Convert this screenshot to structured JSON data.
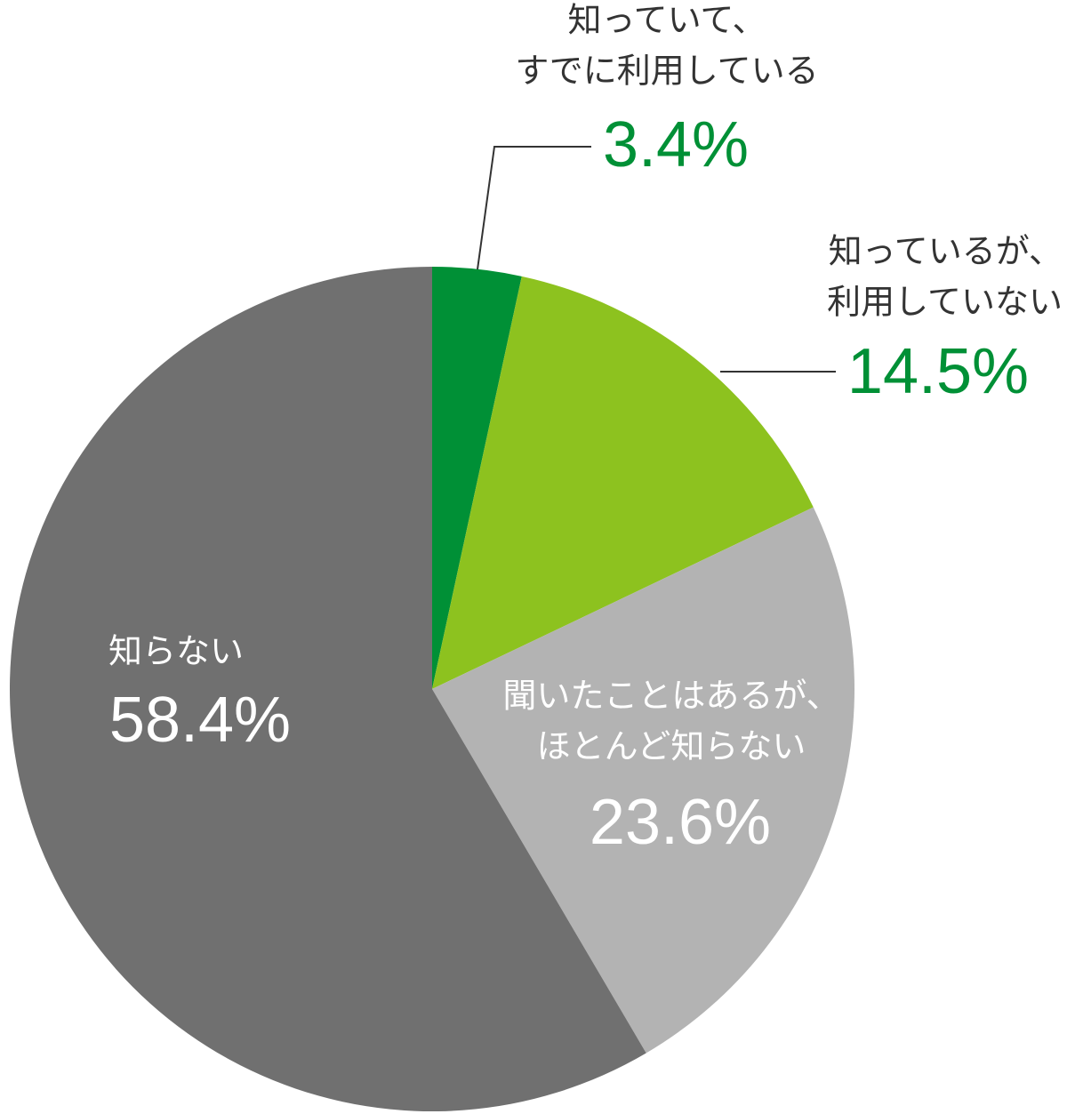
{
  "chart_data": {
    "type": "pie",
    "categories": [
      [
        "知っていて、",
        "すでに利用している"
      ],
      [
        "知っているが、",
        "利用していない"
      ],
      [
        "聞いたことはあるが、",
        "ほとんど知らない"
      ],
      [
        "知らない"
      ]
    ],
    "values": [
      3.4,
      14.5,
      23.6,
      58.4
    ],
    "value_labels": [
      "3.4%",
      "14.5%",
      "23.6%",
      "58.4%"
    ],
    "colors": [
      "#009036",
      "#8dc21f",
      "#b3b3b3",
      "#707070"
    ]
  }
}
